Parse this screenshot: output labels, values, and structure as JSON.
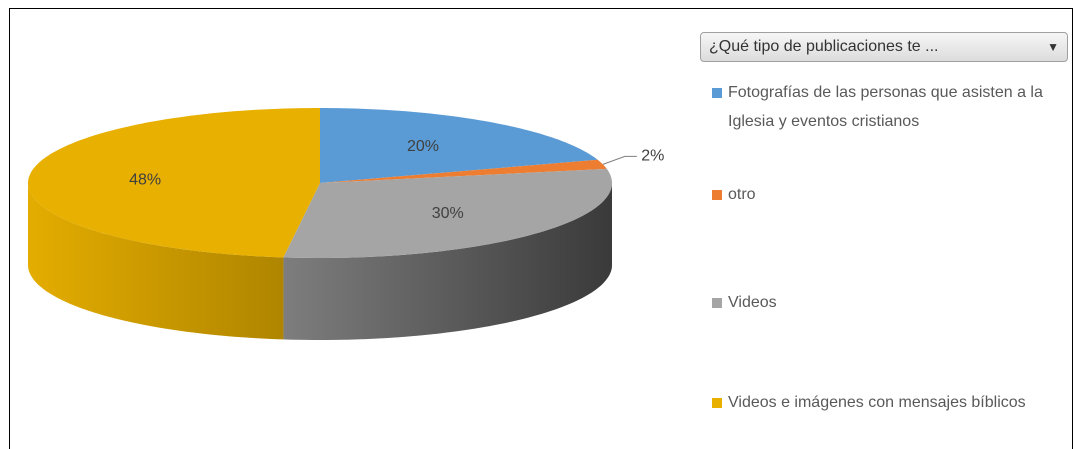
{
  "chart_data": {
    "type": "pie3d",
    "filter_label": "¿Qué tipo de publicaciones te ...",
    "categories": [
      "Fotografías de las personas que asisten a la Iglesia y eventos cristianos",
      "otro",
      "Videos",
      "Videos e imágenes con mensajes bíblicos"
    ],
    "values": [
      20,
      2,
      30,
      48
    ],
    "value_labels": [
      "20%",
      "2%",
      "30%",
      "48%"
    ],
    "colors": [
      "#5b9bd5",
      "#ed7d31",
      "#a5a5a5",
      "#e8b000"
    ],
    "legend": "right"
  }
}
